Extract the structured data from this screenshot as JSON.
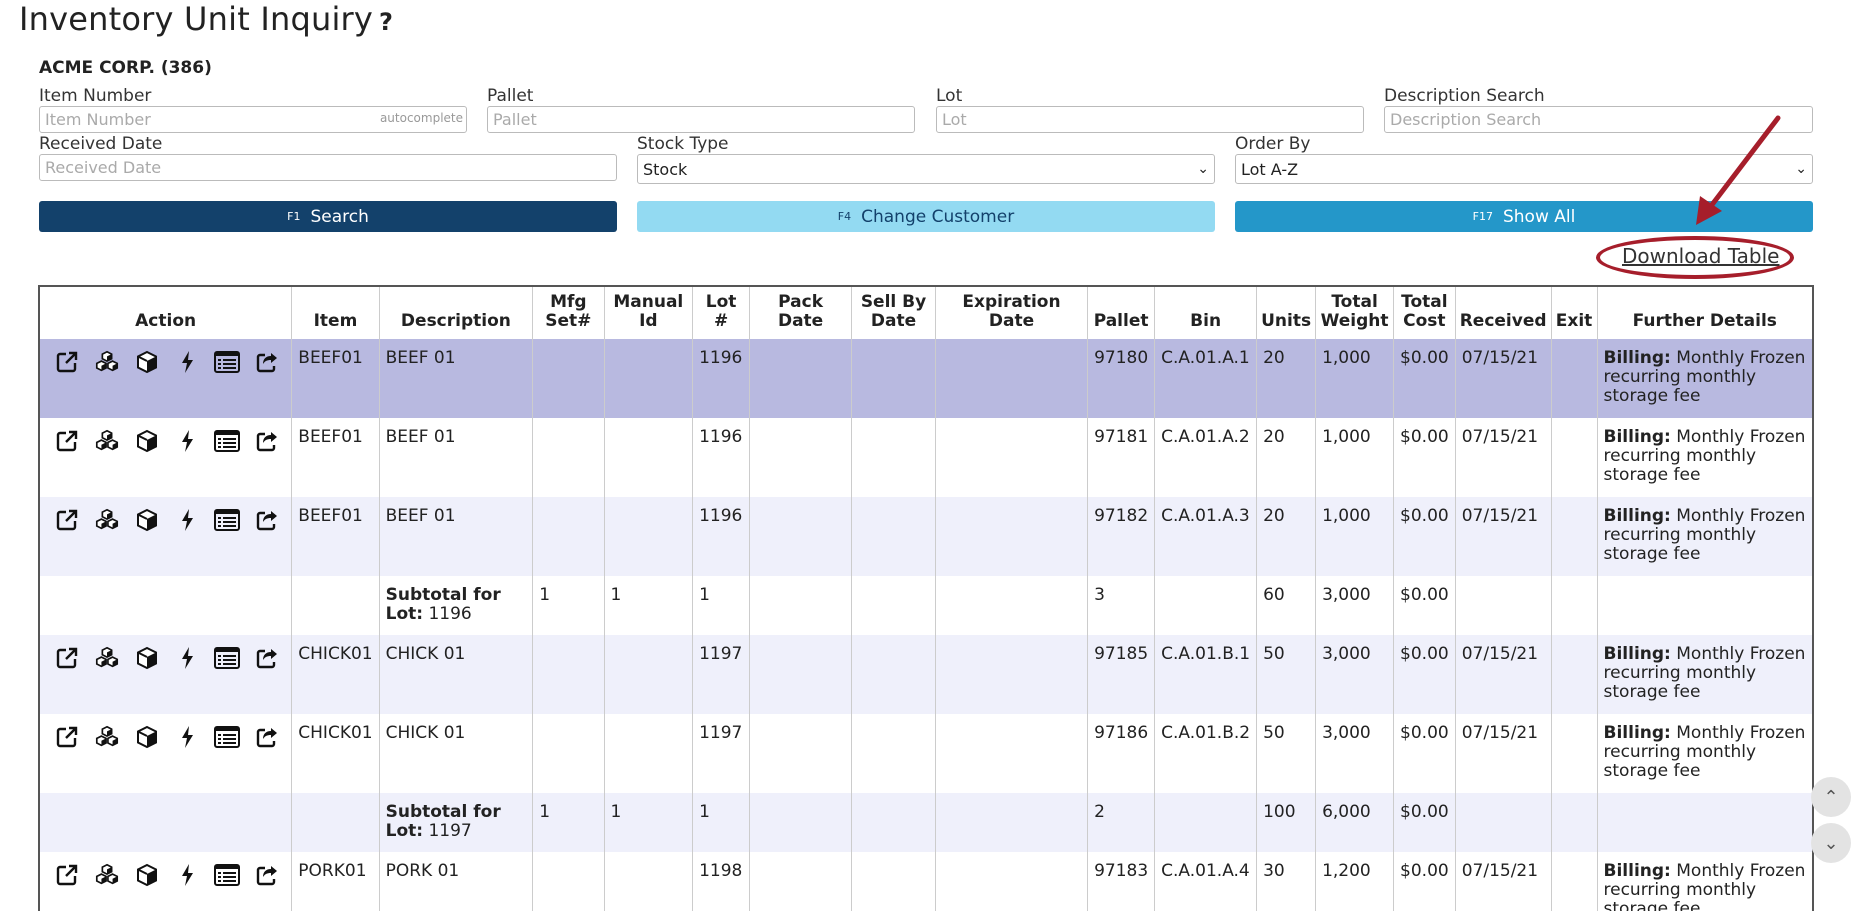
{
  "page": {
    "title": "Inventory Unit Inquiry",
    "help_glyph": "?"
  },
  "customer": "ACME CORP. (386)",
  "filters": {
    "item_number": {
      "label": "Item Number",
      "placeholder": "Item Number",
      "hint": "autocomplete"
    },
    "pallet": {
      "label": "Pallet",
      "placeholder": "Pallet"
    },
    "lot": {
      "label": "Lot",
      "placeholder": "Lot"
    },
    "description": {
      "label": "Description Search",
      "placeholder": "Description Search"
    },
    "received_date": {
      "label": "Received Date",
      "placeholder": "Received Date"
    },
    "stock_type": {
      "label": "Stock Type",
      "value": "Stock"
    },
    "order_by": {
      "label": "Order By",
      "value": "Lot A-Z"
    }
  },
  "buttons": {
    "search": {
      "key": "F1",
      "label": "Search"
    },
    "change_customer": {
      "key": "F4",
      "label": "Change Customer"
    },
    "show_all": {
      "key": "F17",
      "label": "Show All"
    }
  },
  "download_label": "Download Table",
  "table": {
    "headers": [
      "Action",
      "Item",
      "Description",
      "Mfg Set#",
      "Manual Id",
      "Lot #",
      "Pack Date",
      "Sell By Date",
      "Expiration Date",
      "Pallet",
      "Bin",
      "Units",
      "Total Weight",
      "Total Cost",
      "Received",
      "Exit",
      "Further Details"
    ],
    "rows": [
      {
        "type": "data",
        "style": "hl",
        "item": "BEEF01",
        "description": "BEEF 01",
        "mfg": "",
        "manual": "",
        "lot": "1196",
        "pack": "",
        "sell": "",
        "exp": "",
        "pallet": "97180",
        "bin": "C.A.01.A.1",
        "units": "20",
        "weight": "1,000",
        "cost": "$0.00",
        "received": "07/15/21",
        "exit": "",
        "details_label": "Billing:",
        "details": "Monthly Frozen recurring monthly storage fee"
      },
      {
        "type": "data",
        "style": "white",
        "item": "BEEF01",
        "description": "BEEF 01",
        "mfg": "",
        "manual": "",
        "lot": "1196",
        "pack": "",
        "sell": "",
        "exp": "",
        "pallet": "97181",
        "bin": "C.A.01.A.2",
        "units": "20",
        "weight": "1,000",
        "cost": "$0.00",
        "received": "07/15/21",
        "exit": "",
        "details_label": "Billing:",
        "details": "Monthly Frozen recurring monthly storage fee"
      },
      {
        "type": "data",
        "style": "alt",
        "item": "BEEF01",
        "description": "BEEF 01",
        "mfg": "",
        "manual": "",
        "lot": "1196",
        "pack": "",
        "sell": "",
        "exp": "",
        "pallet": "97182",
        "bin": "C.A.01.A.3",
        "units": "20",
        "weight": "1,000",
        "cost": "$0.00",
        "received": "07/15/21",
        "exit": "",
        "details_label": "Billing:",
        "details": "Monthly Frozen recurring monthly storage fee"
      },
      {
        "type": "sub",
        "style": "white",
        "sub_label": "Subtotal for Lot:",
        "sub_lot": "1196",
        "mfg": "1",
        "manual": "1",
        "lot": "1",
        "pallet": "3",
        "units": "60",
        "weight": "3,000",
        "cost": "$0.00"
      },
      {
        "type": "data",
        "style": "alt",
        "item": "CHICK01",
        "description": "CHICK 01",
        "mfg": "",
        "manual": "",
        "lot": "1197",
        "pack": "",
        "sell": "",
        "exp": "",
        "pallet": "97185",
        "bin": "C.A.01.B.1",
        "units": "50",
        "weight": "3,000",
        "cost": "$0.00",
        "received": "07/15/21",
        "exit": "",
        "details_label": "Billing:",
        "details": "Monthly Frozen recurring monthly storage fee"
      },
      {
        "type": "data",
        "style": "white",
        "item": "CHICK01",
        "description": "CHICK 01",
        "mfg": "",
        "manual": "",
        "lot": "1197",
        "pack": "",
        "sell": "",
        "exp": "",
        "pallet": "97186",
        "bin": "C.A.01.B.2",
        "units": "50",
        "weight": "3,000",
        "cost": "$0.00",
        "received": "07/15/21",
        "exit": "",
        "details_label": "Billing:",
        "details": "Monthly Frozen recurring monthly storage fee"
      },
      {
        "type": "sub",
        "style": "alt",
        "sub_label": "Subtotal for Lot:",
        "sub_lot": "1197",
        "mfg": "1",
        "manual": "1",
        "lot": "1",
        "pallet": "2",
        "units": "100",
        "weight": "6,000",
        "cost": "$0.00"
      },
      {
        "type": "data",
        "style": "white",
        "item": "PORK01",
        "description": "PORK 01",
        "mfg": "",
        "manual": "",
        "lot": "1198",
        "pack": "",
        "sell": "",
        "exp": "",
        "pallet": "97183",
        "bin": "C.A.01.A.4",
        "units": "30",
        "weight": "1,200",
        "cost": "$0.00",
        "received": "07/15/21",
        "exit": "",
        "details_label": "Billing:",
        "details": "Monthly Frozen recurring monthly storage fee"
      }
    ]
  },
  "action_icons": [
    "external-link-icon",
    "boxes-icon",
    "box-icon",
    "lightning-icon",
    "list-icon",
    "share-icon"
  ],
  "colors": {
    "primary": "#13416b",
    "light": "#93daf2",
    "accent": "#2497c9",
    "highlight_row": "#b8b9e0",
    "alt_row": "#eff0fb",
    "annotation": "#a61e2b"
  }
}
